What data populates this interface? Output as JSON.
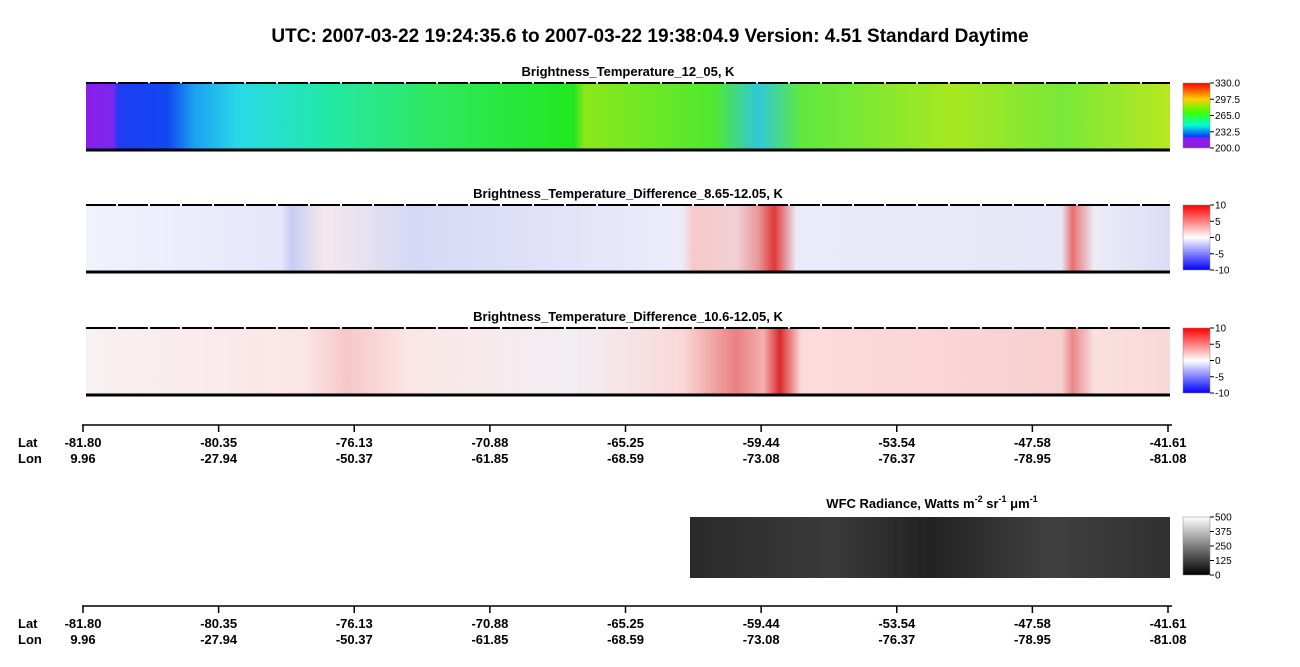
{
  "title": "UTC:  2007-03-22   19:24:35.6  to  2007-03-22   19:38:04.9    Version: 4.51  Standard Daytime",
  "panels": [
    {
      "title": "Brightness_Temperature_12_05, K",
      "colorbar": [
        "330.0",
        "297.5",
        "265.0",
        "232.5",
        "200.0"
      ]
    },
    {
      "title": "Brightness_Temperature_Difference_8.65-12.05, K",
      "colorbar": [
        "10",
        "5",
        "0",
        "-5",
        "-10"
      ]
    },
    {
      "title": "Brightness_Temperature_Difference_10.6-12.05, K",
      "colorbar": [
        "10",
        "5",
        "0",
        "-5",
        "-10"
      ]
    }
  ],
  "axis": {
    "lat_label": "Lat",
    "lon_label": "Lon",
    "lat": [
      "-81.80",
      "-80.35",
      "-76.13",
      "-70.88",
      "-65.25",
      "-59.44",
      "-53.54",
      "-47.58",
      "-41.61"
    ],
    "lon": [
      "9.96",
      "-27.94",
      "-50.37",
      "-61.85",
      "-68.59",
      "-73.08",
      "-76.37",
      "-78.95",
      "-81.08"
    ]
  },
  "wfc": {
    "title_parts": [
      "WFC Radiance, Watts m",
      "-2",
      " sr",
      "-1",
      " μm",
      "-1"
    ],
    "colorbar": [
      "500",
      "375",
      "250",
      "125",
      "0"
    ]
  }
}
